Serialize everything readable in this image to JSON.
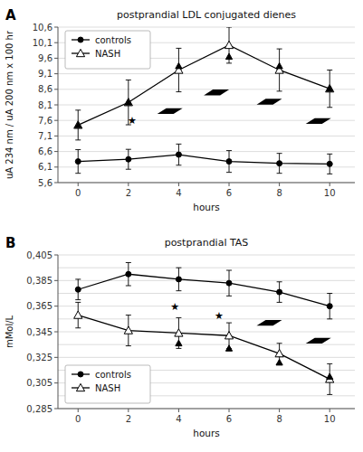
{
  "chart_data": [
    {
      "type": "line",
      "title": "postprandial LDL conjugated dienes",
      "x_label": "hours",
      "y_label": "uA 234 nm / uA 200 nm x 100 hr",
      "x": [
        0,
        2,
        4,
        6,
        8,
        10
      ],
      "xlim": [
        -0.8,
        11.0
      ],
      "xticks": [
        0,
        2,
        4,
        6,
        8,
        10
      ],
      "ylim": [
        5.6,
        10.6
      ],
      "yticks": [
        {
          "value": 5.6,
          "label": "5,6"
        },
        {
          "value": 6.1,
          "label": "6,1"
        },
        {
          "value": 6.6,
          "label": "6,6"
        },
        {
          "value": 7.1,
          "label": "7,1"
        },
        {
          "value": 7.6,
          "label": "7,6"
        },
        {
          "value": 8.1,
          "label": "8,1"
        },
        {
          "value": 8.6,
          "label": "8,6"
        },
        {
          "value": 9.1,
          "label": "9,1"
        },
        {
          "value": 9.6,
          "label": "9,6"
        },
        {
          "value": 10.1,
          "label": "10,1"
        },
        {
          "value": 10.6,
          "label": "10,6"
        }
      ],
      "grid": true,
      "legend": "upper left",
      "series": [
        {
          "name": "controls",
          "color": "#000000",
          "marker": "circle",
          "values": [
            6.28,
            6.35,
            6.5,
            6.28,
            6.22,
            6.2
          ],
          "errors": [
            0.38,
            0.32,
            0.34,
            0.35,
            0.32,
            0.32
          ]
        },
        {
          "name": "NASH",
          "color": "#000000",
          "marker": "triangle-open",
          "values": [
            7.45,
            8.18,
            9.22,
            10.02,
            9.22,
            8.62
          ],
          "errors": [
            0.48,
            0.72,
            0.7,
            0.58,
            0.68,
            0.6
          ]
        },
        {
          "type": "scatter",
          "color": "#000000",
          "marker": "triangle",
          "x": [
            0,
            2,
            4,
            6,
            8,
            10
          ],
          "values": [
            7.45,
            8.18,
            9.35,
            9.65,
            9.35,
            8.62
          ]
        },
        {
          "type": "scatter",
          "color": "#000000",
          "marker": "parallelogram",
          "x": [
            3.65,
            5.5,
            7.6,
            9.55
          ],
          "values": [
            7.9,
            8.5,
            8.2,
            7.58
          ]
        }
      ],
      "annotations": [
        {
          "text": "A"
        },
        {
          "text": "★",
          "x": 2.15,
          "y": 7.6
        }
      ]
    },
    {
      "type": "line",
      "title": "postprandial TAS",
      "x_label": "hours",
      "y_label": "mMol/L",
      "x": [
        0,
        2,
        4,
        6,
        8,
        10
      ],
      "xlim": [
        -0.8,
        11.0
      ],
      "xticks": [
        0,
        2,
        4,
        6,
        8,
        10
      ],
      "ylim": [
        0.285,
        0.405
      ],
      "yticks": [
        {
          "value": 0.285,
          "label": "0,285"
        },
        {
          "value": 0.305,
          "label": "0,305"
        },
        {
          "value": 0.325,
          "label": "0,325"
        },
        {
          "value": 0.345,
          "label": "0,345"
        },
        {
          "value": 0.365,
          "label": "0,365"
        },
        {
          "value": 0.385,
          "label": "0,385"
        },
        {
          "value": 0.405,
          "label": "0,405"
        }
      ],
      "minor_yticks": [
        0.285,
        0.295,
        0.305,
        0.315,
        0.325,
        0.335,
        0.345,
        0.355,
        0.365,
        0.375,
        0.385,
        0.395,
        0.405
      ],
      "grid": true,
      "legend": "lower left",
      "series": [
        {
          "name": "controls",
          "color": "#000000",
          "marker": "circle",
          "values": [
            0.378,
            0.39,
            0.386,
            0.383,
            0.376,
            0.365
          ],
          "errors": [
            0.008,
            0.009,
            0.009,
            0.01,
            0.008,
            0.01
          ]
        },
        {
          "name": "NASH",
          "color": "#000000",
          "marker": "triangle-open",
          "values": [
            0.358,
            0.346,
            0.344,
            0.342,
            0.328,
            0.308
          ],
          "errors": [
            0.01,
            0.012,
            0.012,
            0.01,
            0.008,
            0.012
          ]
        },
        {
          "type": "scatter",
          "color": "#000000",
          "marker": "triangle",
          "x": [
            4,
            6,
            8,
            10
          ],
          "values": [
            0.336,
            0.332,
            0.321,
            0.31
          ]
        },
        {
          "type": "scatter",
          "color": "#000000",
          "marker": "parallelogram",
          "x": [
            7.6,
            9.55
          ],
          "values": [
            0.352,
            0.338
          ]
        }
      ],
      "annotations": [
        {
          "text": "B"
        },
        {
          "text": "★",
          "x": 3.85,
          "y": 0.365
        },
        {
          "text": "★",
          "x": 5.6,
          "y": 0.358
        }
      ]
    }
  ]
}
